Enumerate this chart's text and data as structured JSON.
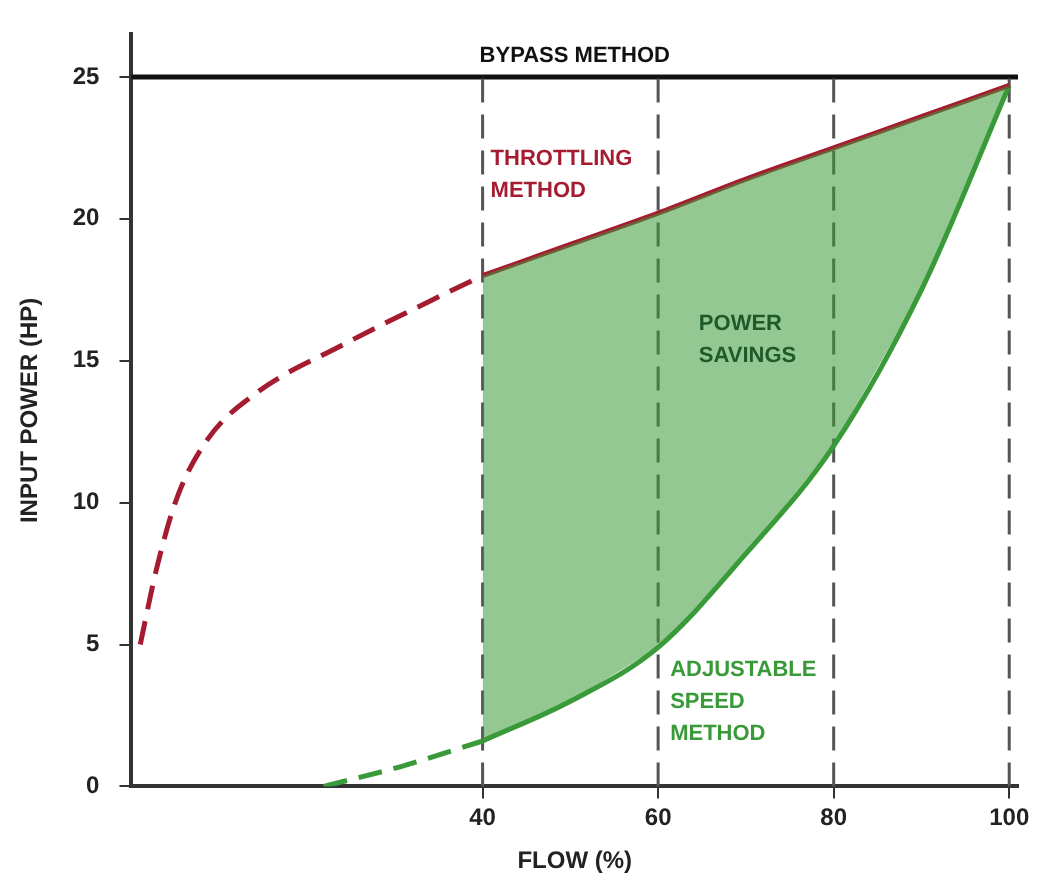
{
  "chart_data": {
    "type": "line",
    "xlabel": "FLOW (%)",
    "ylabel": "INPUT POWER (HP)",
    "xlim": [
      0,
      101
    ],
    "xticks": [
      40,
      60,
      80,
      100
    ],
    "ylim": [
      0,
      26.5
    ],
    "yticks": [
      0,
      5,
      10,
      15,
      20,
      25
    ],
    "grid": false,
    "legend": false,
    "marker": "none",
    "series": [
      {
        "color": "#a51c30",
        "line_style": "dashed",
        "x": [
          1,
          2.8,
          5.1,
          8.6,
          14.4,
          23.7,
          35.3,
          40
        ],
        "values": [
          5,
          7.6,
          10.1,
          12.2,
          13.9,
          15.5,
          17.3,
          18
        ]
      },
      {
        "name": "THROTTLING METHOD",
        "color": "#a51c30",
        "line_style": "solid",
        "x": [
          40,
          50,
          60,
          70,
          80,
          90,
          100
        ],
        "values": [
          18,
          19.1,
          20.2,
          21.4,
          22.5,
          23.6,
          24.7
        ]
      },
      {
        "color": "#3a9a3a",
        "line_style": "dashed",
        "x": [
          21.9,
          30.7,
          40
        ],
        "values": [
          0,
          0.7,
          1.6
        ]
      },
      {
        "name": "ADJUSTABLE SPEED METHOD",
        "color": "#3a9a3a",
        "line_style": "solid",
        "x": [
          40,
          50,
          60,
          70,
          80,
          90,
          100
        ],
        "values": [
          1.6,
          3.0,
          4.9,
          8.2,
          12.0,
          17.5,
          24.7
        ],
        "lower": [
          1.6,
          3.0,
          4.9,
          8.2,
          12.0,
          17.5,
          24.7
        ],
        "upper": [
          18,
          19.1,
          20.2,
          21.4,
          22.5,
          23.6,
          24.7
        ]
      }
    ],
    "ref_lines": [
      {
        "axis": "y",
        "value": 25,
        "label": "BYPASS METHOD",
        "color": "#111111",
        "line_style": "solid"
      },
      {
        "axis": "x",
        "value": 40,
        "color": "#555555",
        "line_style": "dashed"
      },
      {
        "axis": "x",
        "value": 60,
        "color": "#555555",
        "line_style": "dashed"
      },
      {
        "axis": "x",
        "value": 80,
        "color": "#555555",
        "line_style": "dashed"
      },
      {
        "axis": "x",
        "value": 100,
        "color": "#555555",
        "line_style": "dashed"
      }
    ],
    "annotations": [
      "POWER SAVINGS"
    ]
  }
}
